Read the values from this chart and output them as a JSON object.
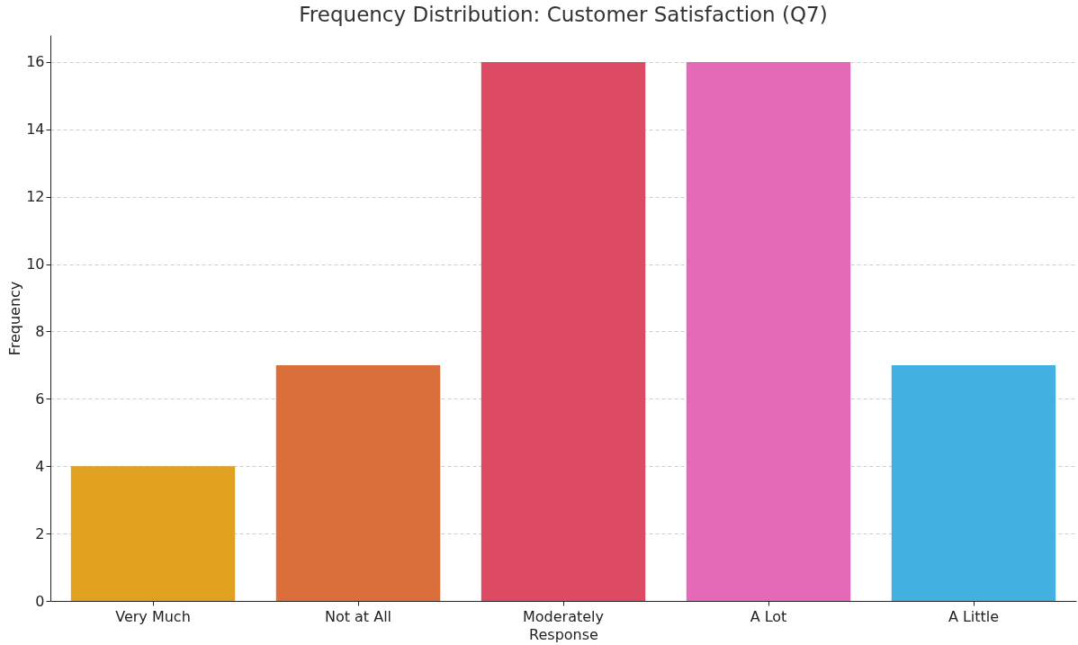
{
  "chart_data": {
    "type": "bar",
    "title": "Frequency Distribution: Customer Satisfaction (Q7)",
    "xlabel": "Response",
    "ylabel": "Frequency",
    "categories": [
      "Very Much",
      "Not at All",
      "Moderately",
      "A Lot",
      "A Little"
    ],
    "values": [
      4,
      7,
      16,
      16,
      7
    ],
    "colors": [
      "#e0a020",
      "#db6f3b",
      "#dc4a64",
      "#e46ab8",
      "#43b0e2"
    ],
    "ylim": [
      0,
      16.8
    ],
    "yticks": [
      0,
      2,
      4,
      6,
      8,
      10,
      12,
      14,
      16
    ],
    "grid": "y"
  }
}
